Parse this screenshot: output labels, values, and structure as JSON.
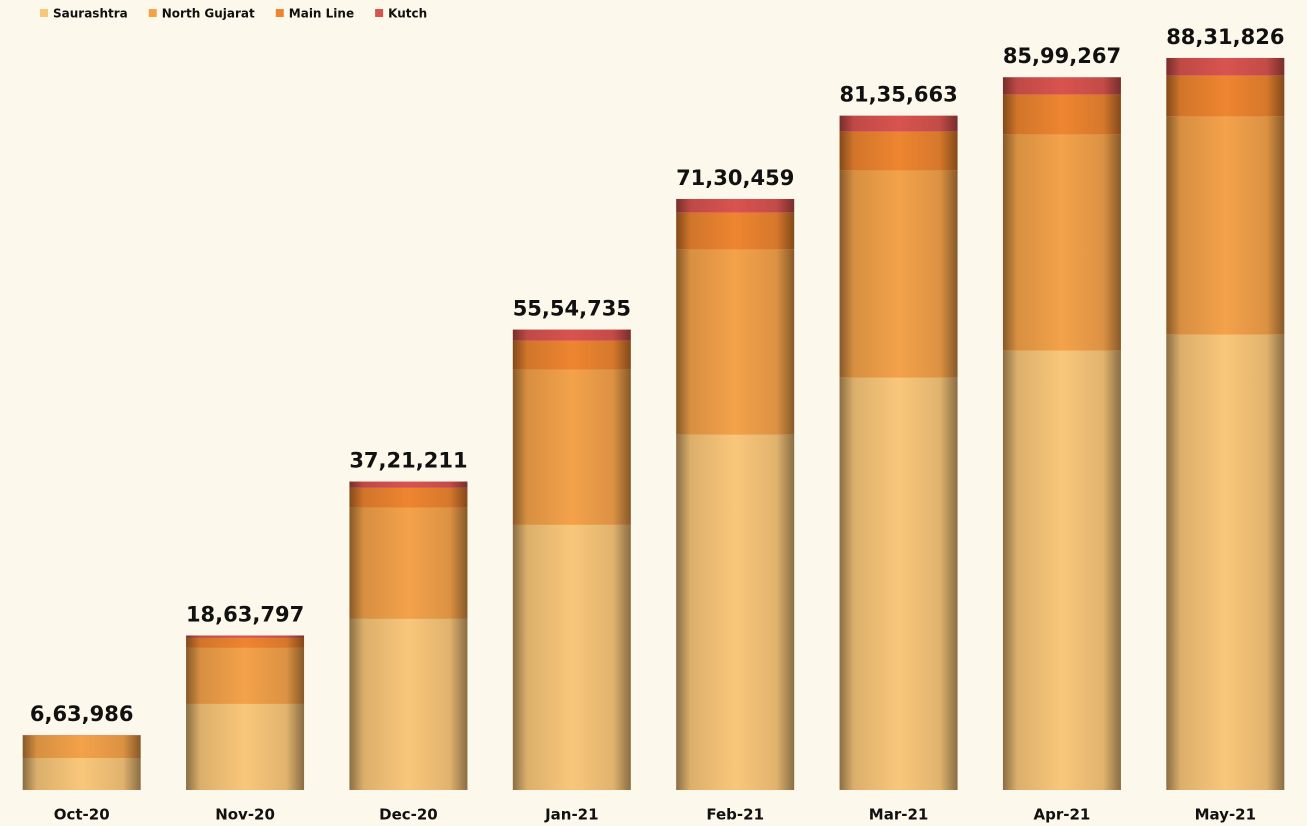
{
  "chart_data": {
    "type": "stacked_bar",
    "categories": [
      "Oct-20",
      "Nov-20",
      "Dec-20",
      "Jan-21",
      "Feb-21",
      "Mar-21",
      "Apr-21",
      "May-21"
    ],
    "series": [
      {
        "name": "Saurashtra",
        "color": "#f9c77a",
        "values": [
          386000,
          1038000,
          2064000,
          3198000,
          4285000,
          4973000,
          5299000,
          5492000
        ]
      },
      {
        "name": "North Gujarat",
        "color": "#f4a24a",
        "values": [
          270000,
          676000,
          1340000,
          1871000,
          2233000,
          2498000,
          2607000,
          2631000
        ]
      },
      {
        "name": "Main Line",
        "color": "#ee8530",
        "values": [
          6000,
          121000,
          241000,
          350000,
          447000,
          471000,
          483000,
          495000
        ]
      },
      {
        "name": "Kutch",
        "color": "#d9534f",
        "values": [
          1986,
          28797,
          76211,
          135735,
          165459,
          193663,
          210267,
          213826
        ]
      }
    ],
    "totals": [
      663986,
      1863797,
      3721211,
      5554735,
      7130459,
      8135663,
      8599267,
      8831826
    ],
    "total_labels": [
      "6,63,986",
      "18,63,797",
      "37,21,211",
      "55,54,735",
      "71,30,459",
      "81,35,663",
      "85,99,267",
      "88,31,826"
    ],
    "ylim": [
      0,
      9000000
    ],
    "legend": "top-left"
  }
}
